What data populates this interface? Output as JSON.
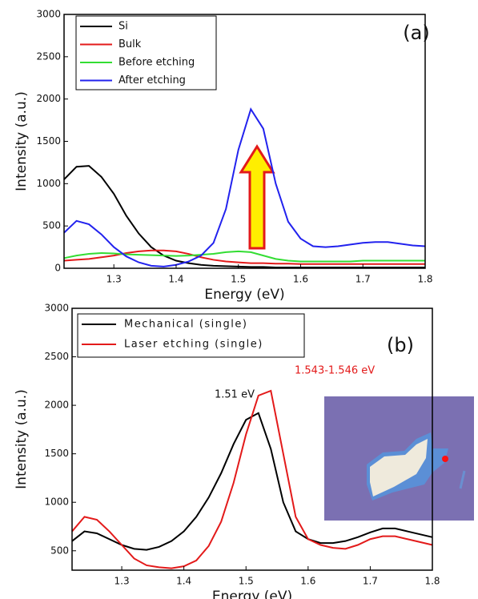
{
  "chart_data": [
    {
      "type": "line",
      "panel_label": "(a)",
      "x_label": "Energy (eV)",
      "y_label": "Intensity (a.u.)",
      "x": [
        1.22,
        1.24,
        1.26,
        1.28,
        1.3,
        1.32,
        1.34,
        1.36,
        1.38,
        1.4,
        1.42,
        1.44,
        1.46,
        1.48,
        1.5,
        1.52,
        1.54,
        1.56,
        1.58,
        1.6,
        1.62,
        1.64,
        1.66,
        1.68,
        1.7,
        1.72,
        1.74,
        1.76,
        1.78,
        1.8
      ],
      "series": [
        {
          "name": "Si",
          "color": "#000000",
          "values": [
            1050,
            1200,
            1210,
            1080,
            880,
            620,
            410,
            250,
            150,
            90,
            60,
            40,
            30,
            25,
            20,
            15,
            15,
            10,
            10,
            10,
            10,
            10,
            10,
            10,
            10,
            10,
            10,
            10,
            10,
            10
          ]
        },
        {
          "name": "Bulk",
          "color": "#e31a1a",
          "values": [
            90,
            100,
            110,
            130,
            150,
            180,
            200,
            210,
            210,
            200,
            170,
            130,
            100,
            80,
            70,
            60,
            60,
            55,
            55,
            50,
            50,
            50,
            50,
            50,
            50,
            50,
            50,
            50,
            50,
            50
          ]
        },
        {
          "name": "Before etching",
          "color": "#33dd33",
          "values": [
            120,
            150,
            170,
            180,
            175,
            165,
            160,
            155,
            150,
            145,
            150,
            160,
            170,
            190,
            200,
            190,
            150,
            110,
            90,
            80,
            80,
            80,
            80,
            80,
            90,
            90,
            90,
            90,
            90,
            90
          ]
        },
        {
          "name": "After etching",
          "color": "#2222ee",
          "values": [
            420,
            560,
            520,
            400,
            250,
            140,
            70,
            30,
            20,
            40,
            80,
            150,
            300,
            700,
            1400,
            1880,
            1650,
            1000,
            550,
            350,
            260,
            250,
            260,
            280,
            300,
            310,
            310,
            290,
            270,
            260
          ]
        }
      ],
      "xlim": [
        1.22,
        1.8
      ],
      "xticks": [
        1.3,
        1.4,
        1.5,
        1.6,
        1.7,
        1.8
      ],
      "ylim": [
        0,
        3000
      ],
      "yticks": [
        0,
        500,
        1000,
        1500,
        2000,
        2500,
        3000
      ],
      "grid": false,
      "legend": "upper left"
    },
    {
      "type": "line",
      "panel_label": "(b)",
      "x_label": "Energy (eV)",
      "y_label": "Intensity (a.u.)",
      "annotations": [
        "1.51 eV",
        "1.543-1.546 eV"
      ],
      "x": [
        1.22,
        1.24,
        1.26,
        1.28,
        1.3,
        1.32,
        1.34,
        1.36,
        1.38,
        1.4,
        1.42,
        1.44,
        1.46,
        1.48,
        1.5,
        1.52,
        1.54,
        1.56,
        1.58,
        1.6,
        1.62,
        1.64,
        1.66,
        1.68,
        1.7,
        1.72,
        1.74,
        1.76,
        1.78,
        1.8
      ],
      "series": [
        {
          "name": "Mechanical (single)",
          "color": "#000000",
          "values": [
            600,
            700,
            680,
            620,
            560,
            520,
            510,
            540,
            600,
            700,
            850,
            1050,
            1300,
            1600,
            1850,
            1920,
            1550,
            1000,
            700,
            620,
            580,
            580,
            600,
            640,
            690,
            730,
            730,
            700,
            670,
            640
          ]
        },
        {
          "name": "Laser etching (single)",
          "color": "#e31a1a",
          "values": [
            700,
            850,
            820,
            700,
            560,
            420,
            350,
            330,
            320,
            340,
            400,
            550,
            800,
            1200,
            1700,
            2100,
            2150,
            1500,
            850,
            620,
            560,
            530,
            520,
            560,
            620,
            650,
            650,
            620,
            590,
            560
          ]
        }
      ],
      "xlim": [
        1.22,
        1.8
      ],
      "xticks": [
        1.3,
        1.4,
        1.5,
        1.6,
        1.7,
        1.8
      ],
      "ylim": [
        300,
        3000
      ],
      "yticks": [
        500,
        1000,
        1500,
        2000,
        2500,
        3000
      ],
      "grid": false,
      "legend": "upper left"
    }
  ]
}
